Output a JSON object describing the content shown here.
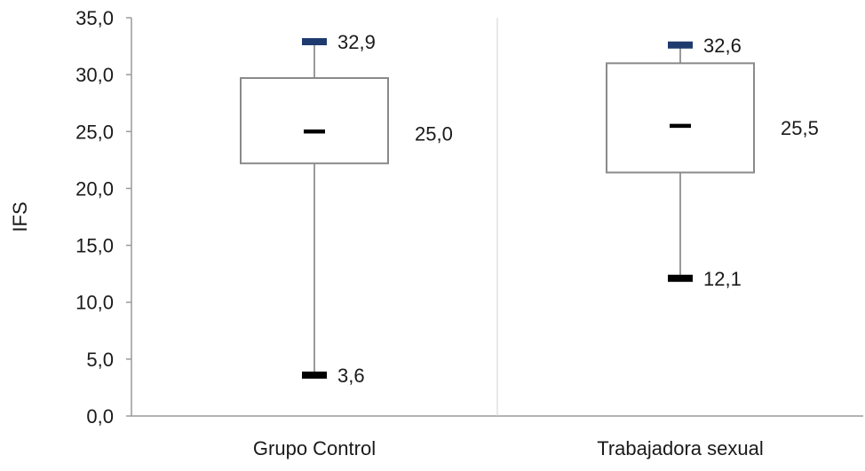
{
  "chart_data": {
    "type": "boxplot",
    "title": "",
    "xlabel": "",
    "ylabel": "IFS",
    "ylim": [
      0,
      35
    ],
    "yticks": [
      "0,0",
      "5,0",
      "10,0",
      "15,0",
      "20,0",
      "25,0",
      "30,0",
      "35,0"
    ],
    "ytick_values": [
      0,
      5,
      10,
      15,
      20,
      25,
      30,
      35
    ],
    "grid": false,
    "categories": [
      "Grupo Control",
      "Trabajadora sexual"
    ],
    "boxes": [
      {
        "category": "Grupo Control",
        "min": 3.6,
        "q1": 22.2,
        "median": 25.0,
        "q3": 29.7,
        "max": 32.9,
        "min_label": "3,6",
        "median_label": "25,0",
        "max_label": "32,9"
      },
      {
        "category": "Trabajadora sexual",
        "min": 12.1,
        "q1": 21.4,
        "median": 25.5,
        "q3": 31.0,
        "max": 32.6,
        "min_label": "12,1",
        "median_label": "25,5",
        "max_label": "32,6"
      }
    ],
    "colors": {
      "max_marker": "#1f3a6e",
      "min_marker": "#000000",
      "median_marker": "#000000",
      "box_stroke": "#8a8a8a",
      "whisker": "#9a9a9a",
      "axis": "#9a9a9a",
      "divider": "#d0d0d0"
    }
  }
}
